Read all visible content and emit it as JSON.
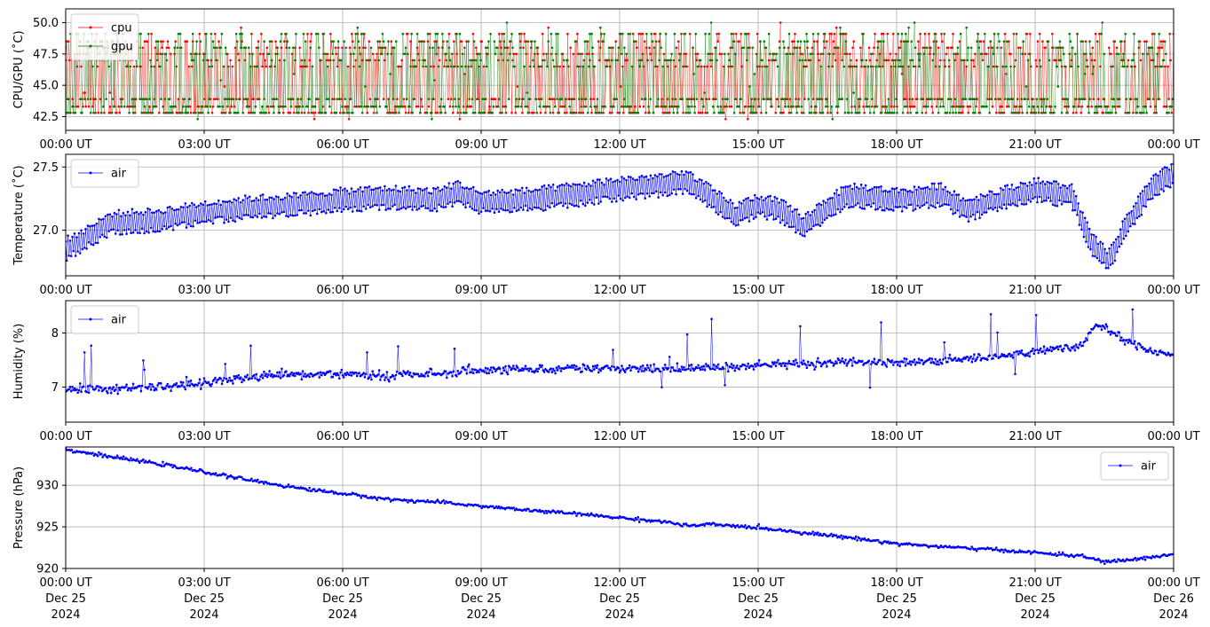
{
  "chart_data": [
    {
      "type": "line",
      "ylabel": "CPU/GPU (˚C)",
      "xlim": [
        "2024-12-25T00:00",
        "2024-12-26T00:00"
      ],
      "ylim": [
        41.4,
        51.1
      ],
      "yticks": [
        42.5,
        45.0,
        47.5,
        50.0
      ],
      "ytick_labels": [
        "42.5",
        "45.0",
        "47.5",
        "50.0"
      ],
      "xtick_labels": [
        "00:00 UT",
        "03:00 UT",
        "06:00 UT",
        "09:00 UT",
        "12:00 UT",
        "15:00 UT",
        "18:00 UT",
        "21:00 UT",
        "00:00 UT"
      ],
      "grid": true,
      "legend": "upper-left",
      "series": [
        {
          "name": "cpu",
          "color": "#ff0000",
          "x_hours": [
            0,
            3,
            6,
            9,
            12,
            15,
            18,
            21,
            24
          ],
          "values": [
            45.5,
            46.0,
            45.8,
            45.6,
            45.9,
            46.0,
            46.2,
            46.1,
            46.0
          ]
        },
        {
          "name": "gpu",
          "color": "#008000",
          "x_hours": [
            0,
            3,
            6,
            9,
            12,
            15,
            18,
            21,
            24
          ],
          "values": [
            45.4,
            45.9,
            45.7,
            45.5,
            45.8,
            45.9,
            46.1,
            46.0,
            45.9
          ]
        }
      ]
    },
    {
      "type": "line",
      "ylabel": "Temperature (˚C)",
      "xlim": [
        "2024-12-25T00:00",
        "2024-12-26T00:00"
      ],
      "ylim": [
        26.64,
        27.6
      ],
      "yticks": [
        27.0,
        27.5
      ],
      "ytick_labels": [
        "27.0",
        "27.5"
      ],
      "xtick_labels": [
        "00:00 UT",
        "03:00 UT",
        "06:00 UT",
        "09:00 UT",
        "12:00 UT",
        "15:00 UT",
        "18:00 UT",
        "21:00 UT",
        "00:00 UT"
      ],
      "grid": true,
      "legend": "upper-left",
      "series": [
        {
          "name": "air",
          "color": "#0000ff",
          "x_hours": [
            0,
            0.5,
            1,
            2,
            3,
            4,
            5,
            6,
            7,
            8,
            8.5,
            9,
            10,
            11,
            12,
            13,
            13.5,
            14,
            14.5,
            15,
            15.5,
            16,
            16.5,
            17,
            18,
            19,
            19.5,
            20,
            21,
            21.8,
            22.2,
            22.6,
            23,
            23.5,
            24
          ],
          "values": [
            26.85,
            26.95,
            27.06,
            27.08,
            27.14,
            27.18,
            27.2,
            27.24,
            27.26,
            27.24,
            27.3,
            27.22,
            27.24,
            27.28,
            27.33,
            27.36,
            27.38,
            27.25,
            27.12,
            27.2,
            27.15,
            27.03,
            27.18,
            27.28,
            27.24,
            27.28,
            27.16,
            27.22,
            27.32,
            27.27,
            26.9,
            26.75,
            27.05,
            27.32,
            27.45
          ]
        }
      ]
    },
    {
      "type": "line",
      "ylabel": "Humidity (%)",
      "xlim": [
        "2024-12-25T00:00",
        "2024-12-26T00:00"
      ],
      "ylim": [
        6.35,
        8.6
      ],
      "yticks": [
        7,
        8
      ],
      "ytick_labels": [
        "7",
        "8"
      ],
      "xtick_labels": [
        "00:00 UT",
        "03:00 UT",
        "06:00 UT",
        "09:00 UT",
        "12:00 UT",
        "15:00 UT",
        "18:00 UT",
        "21:00 UT",
        "00:00 UT"
      ],
      "grid": true,
      "legend": "upper-left",
      "series": [
        {
          "name": "air",
          "color": "#0000ff",
          "x_hours": [
            0,
            1,
            2,
            3,
            4,
            5,
            6,
            7,
            8,
            9,
            10,
            11,
            12,
            13,
            14,
            15,
            16,
            17,
            18,
            19,
            20,
            21,
            22,
            22.3,
            22.6,
            23,
            23.5,
            24
          ],
          "values": [
            6.95,
            6.97,
            7.0,
            7.07,
            7.18,
            7.22,
            7.25,
            7.2,
            7.25,
            7.3,
            7.33,
            7.35,
            7.35,
            7.33,
            7.37,
            7.4,
            7.45,
            7.45,
            7.45,
            7.5,
            7.55,
            7.65,
            7.78,
            8.15,
            8.05,
            7.85,
            7.68,
            7.63
          ]
        }
      ]
    },
    {
      "type": "line",
      "ylabel": "Pressure (hPa)",
      "xlim": [
        "2024-12-25T00:00",
        "2024-12-26T00:00"
      ],
      "ylim": [
        920,
        934.6
      ],
      "yticks": [
        920,
        925,
        930
      ],
      "ytick_labels": [
        "920",
        "925",
        "930"
      ],
      "xtick_labels": [
        "00:00 UT\nDec 25\n2024",
        "03:00 UT\nDec 25\n2024",
        "06:00 UT\nDec 25\n2024",
        "09:00 UT\nDec 25\n2024",
        "12:00 UT\nDec 25\n2024",
        "15:00 UT\nDec 25\n2024",
        "18:00 UT\nDec 25\n2024",
        "21:00 UT\nDec 25\n2024",
        "00:00 UT\nDec 26\n2024"
      ],
      "grid": true,
      "legend": "upper-right",
      "series": [
        {
          "name": "air",
          "color": "#0000ff",
          "x_hours": [
            0,
            1,
            2,
            3,
            4,
            5,
            6,
            7,
            8,
            9,
            10,
            11,
            12,
            13,
            13.5,
            14,
            15,
            16,
            17,
            18,
            19,
            20,
            21,
            22,
            22.5,
            23,
            24
          ],
          "values": [
            934.3,
            933.4,
            932.6,
            931.6,
            930.6,
            929.7,
            929.0,
            928.3,
            928.0,
            927.5,
            927.0,
            926.6,
            926.1,
            925.6,
            925.1,
            925.3,
            924.9,
            924.3,
            923.7,
            923.0,
            922.6,
            922.3,
            921.9,
            921.5,
            920.8,
            921.0,
            921.7
          ]
        }
      ]
    }
  ]
}
